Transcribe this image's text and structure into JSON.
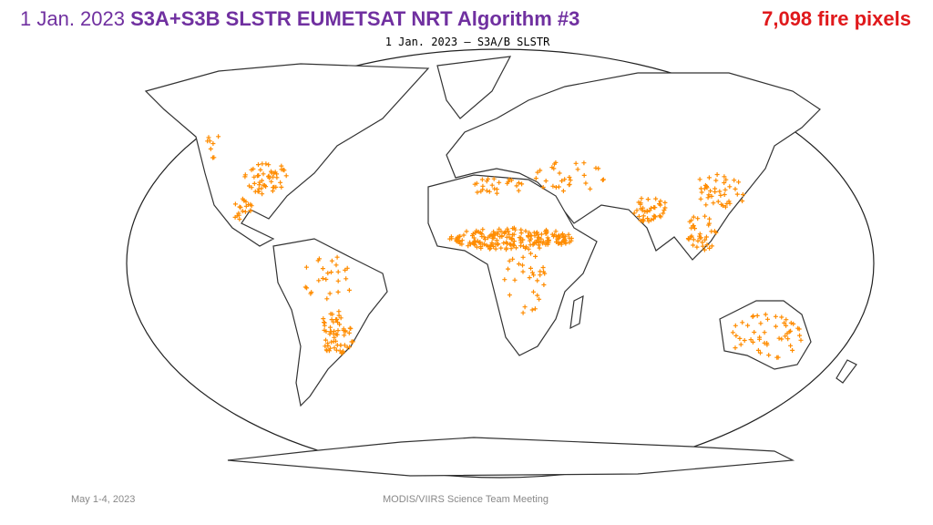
{
  "header": {
    "date": "1 Jan. 2023",
    "title": "S3A+S3B SLSTR EUMETSAT NRT Algorithm #3",
    "count": "7,098 fire pixels"
  },
  "map": {
    "title": "1 Jan. 2023 – S3A/B SLSTR"
  },
  "footer": {
    "date": "May 1-4, 2023",
    "meeting": "MODIS/VIIRS Science Team Meeting"
  }
}
